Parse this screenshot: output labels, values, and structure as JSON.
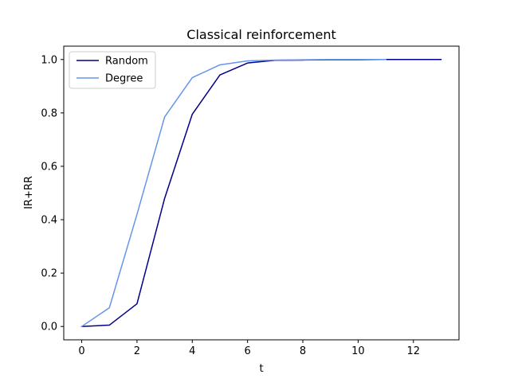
{
  "chart_data": {
    "type": "line",
    "title": "Classical reinforcement",
    "xlabel": "t",
    "ylabel": "IR+RR",
    "xlim": [
      -0.65,
      13.65
    ],
    "ylim": [
      -0.05,
      1.05
    ],
    "xticks": [
      0,
      2,
      4,
      6,
      8,
      10,
      12
    ],
    "yticks": [
      0.0,
      0.2,
      0.4,
      0.6,
      0.8,
      1.0
    ],
    "xtick_labels": [
      "0",
      "2",
      "4",
      "6",
      "8",
      "10",
      "12"
    ],
    "ytick_labels": [
      "0.0",
      "0.2",
      "0.4",
      "0.6",
      "0.8",
      "1.0"
    ],
    "grid": false,
    "legend_position": "top-left",
    "series": [
      {
        "name": "Random",
        "color": "#00008b",
        "x": [
          0,
          1,
          2,
          3,
          4,
          5,
          6,
          7,
          8,
          9,
          10,
          11,
          12,
          13
        ],
        "y": [
          0.0,
          0.005,
          0.085,
          0.48,
          0.795,
          0.942,
          0.987,
          0.997,
          0.998,
          0.999,
          0.999,
          1.0,
          1.0,
          1.0
        ]
      },
      {
        "name": "Degree",
        "color": "#6495ed",
        "x": [
          0,
          1,
          2,
          3,
          4,
          5,
          6,
          7,
          8,
          9,
          10,
          11
        ],
        "y": [
          0.0,
          0.07,
          0.42,
          0.785,
          0.932,
          0.98,
          0.995,
          0.998,
          0.999,
          1.0,
          1.0,
          1.0
        ]
      }
    ]
  }
}
